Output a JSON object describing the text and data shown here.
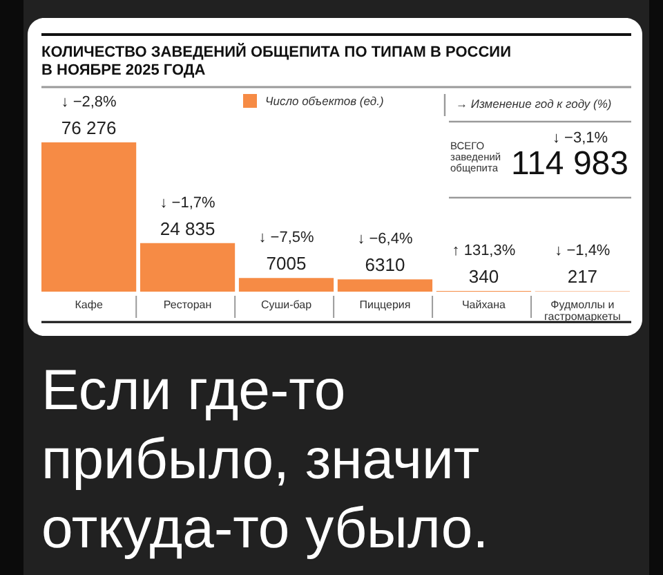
{
  "chart_data": {
    "type": "bar",
    "title": "КОЛИЧЕСТВО ЗАВЕДЕНИЙ ОБЩЕПИТА ПО ТИПАМ В РОССИИ В НОЯБРЕ 2025 ГОДА",
    "categories": [
      "Кафе",
      "Ресторан",
      "Суши-бар",
      "Пиццерия",
      "Чайхана",
      "Фудмоллы и гастромаркеты"
    ],
    "series": [
      {
        "name": "Число объектов (ед.)",
        "color": "#f68b45",
        "values": [
          76276,
          24835,
          7005,
          6310,
          340,
          217
        ],
        "value_labels": [
          "76 276",
          "24 835",
          "7005",
          "6310",
          "340",
          "217"
        ]
      }
    ],
    "legend": "top",
    "annotations": [
      "↓ −2,8%",
      "↓ −1,7%",
      "↓ −7,5%",
      "↓ −6,4%",
      "↑ 131,3%",
      "↓ −1,4%",
      "→ Изменение год к году (%)",
      "↓ −3,1%",
      "ВСЕГО заведений общепита",
      "114 983",
      "Если где-то прибыло, значит откуда-то убыло."
    ]
  }
}
